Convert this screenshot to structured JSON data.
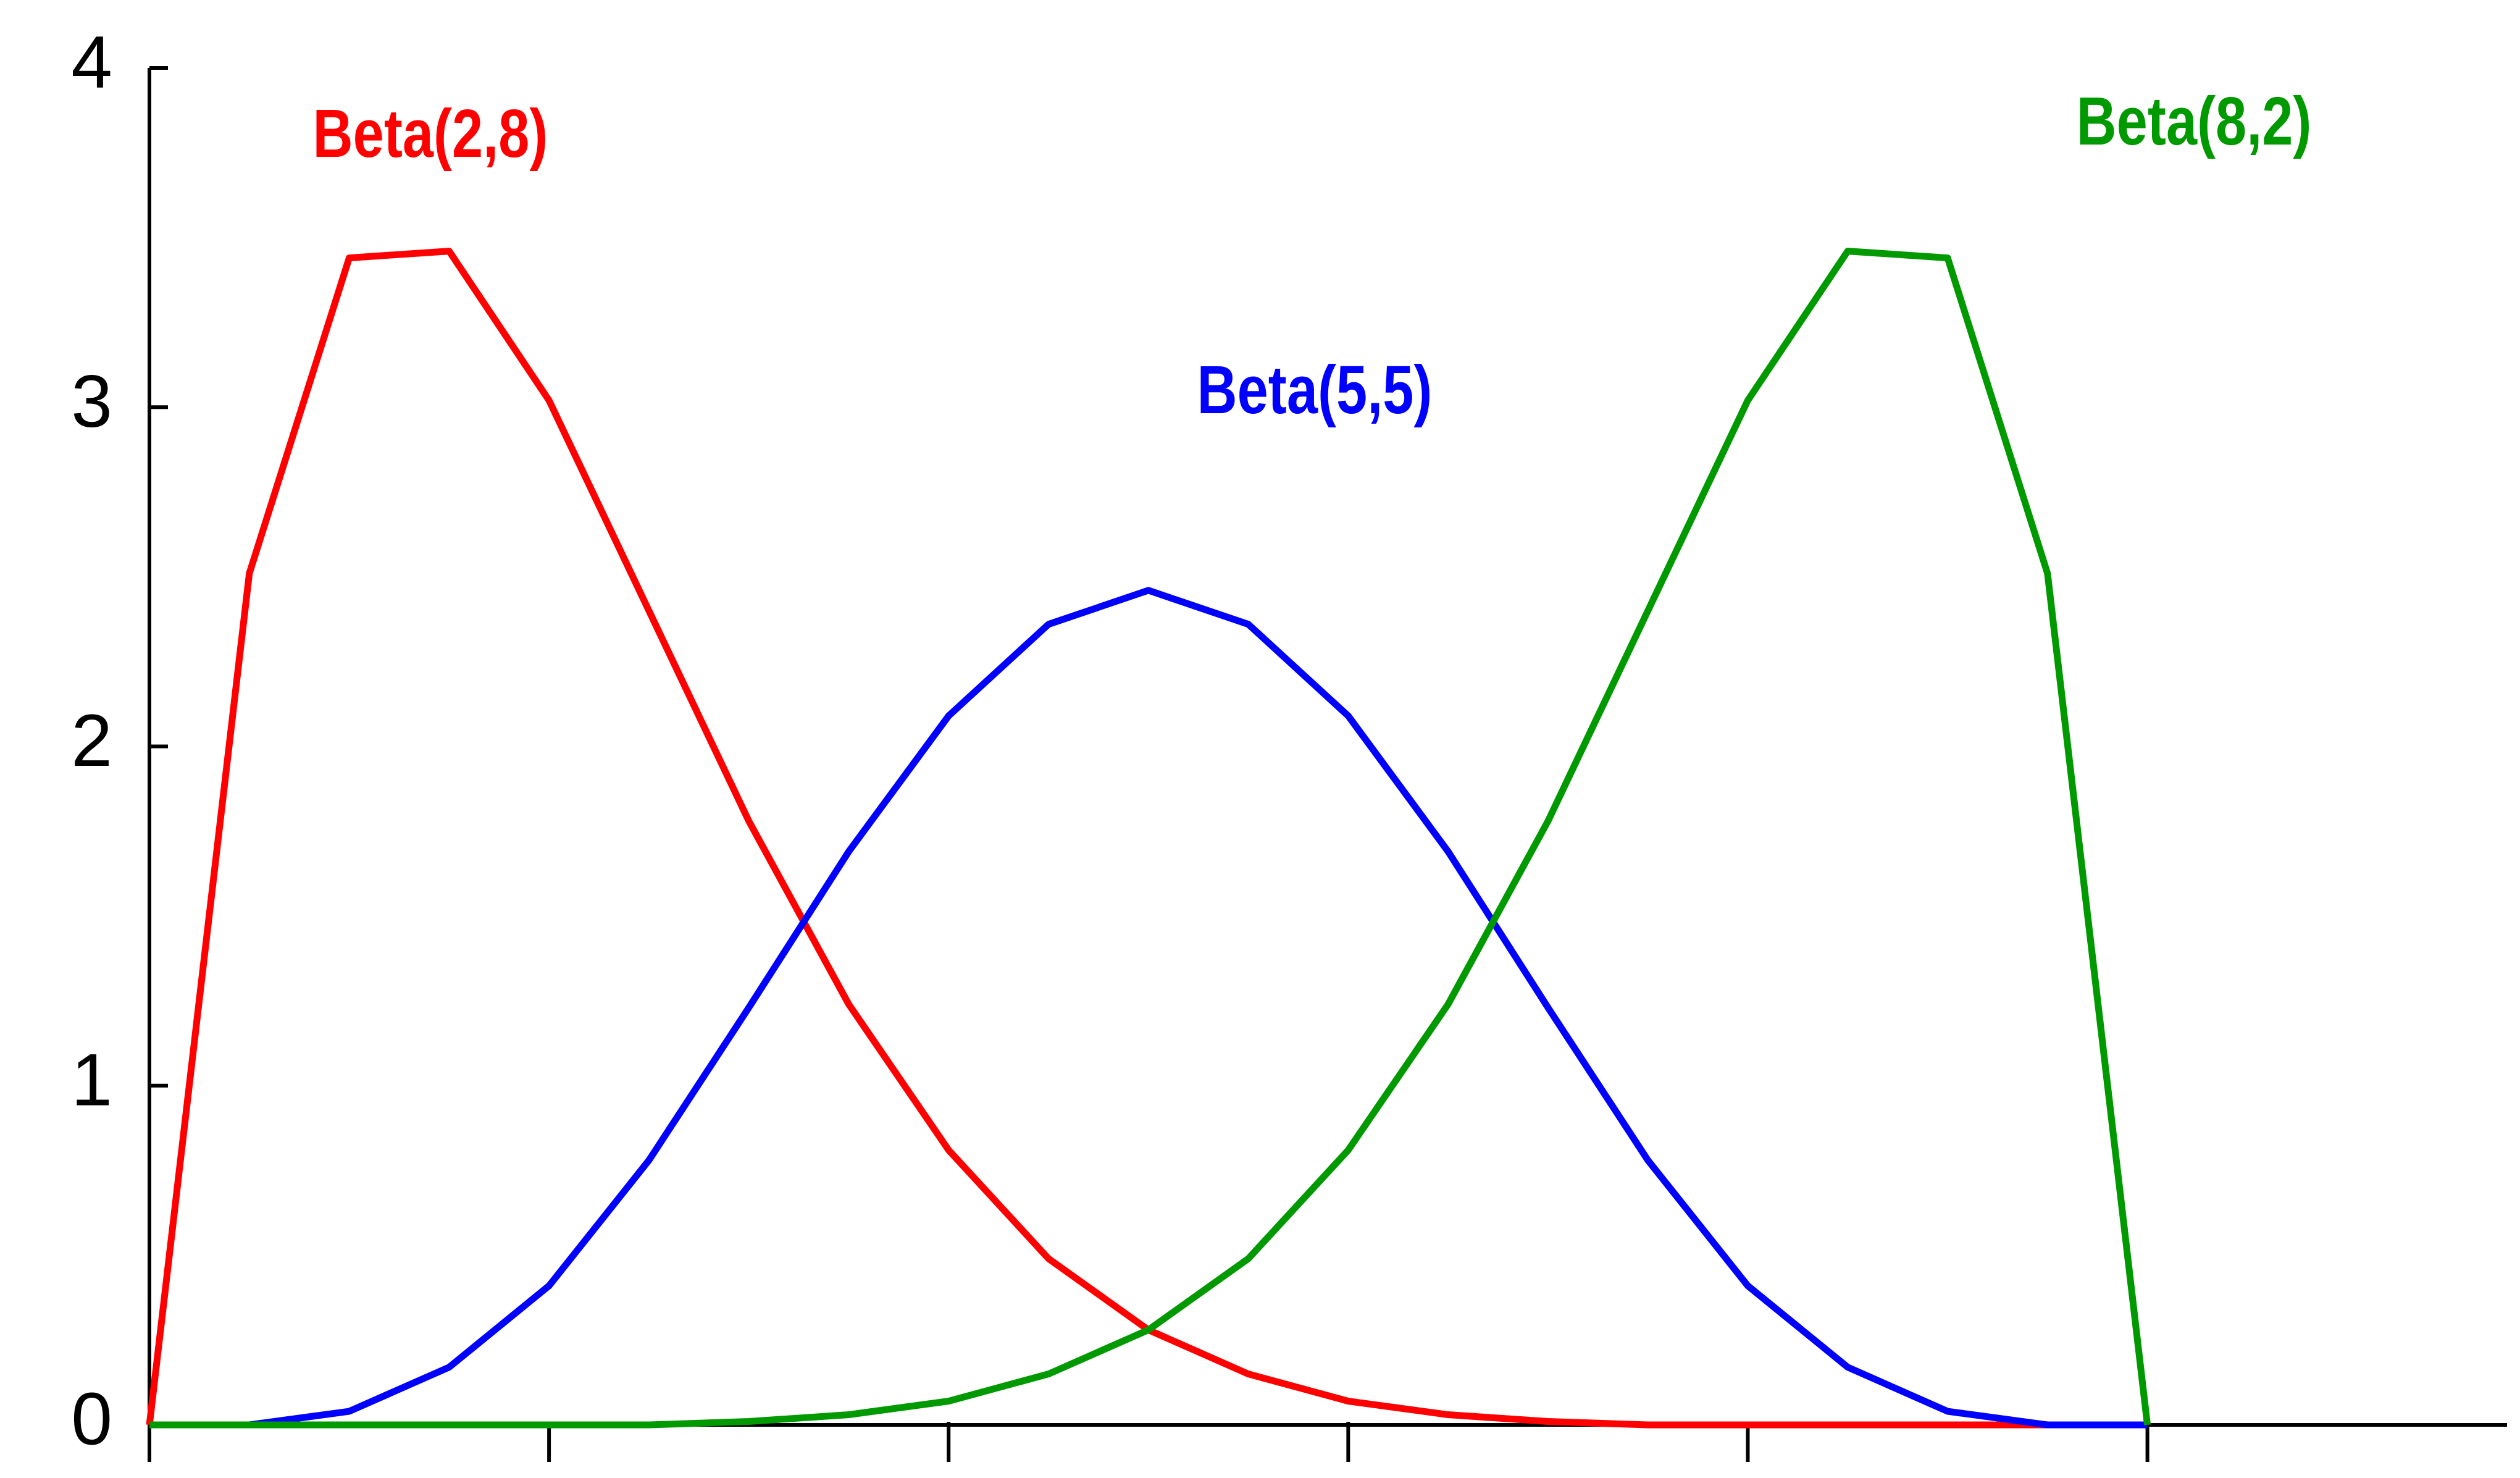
{
  "chart_data": {
    "type": "line",
    "x": [
      0,
      0.05,
      0.1,
      0.15,
      0.2,
      0.25,
      0.3,
      0.35,
      0.4,
      0.45,
      0.5,
      0.55,
      0.6,
      0.65,
      0.7,
      0.75,
      0.8,
      0.85,
      0.9,
      0.95,
      1
    ],
    "series": [
      {
        "name": "Beta(2,8)",
        "color": "#ff0000",
        "values": [
          0,
          2.51,
          3.44,
          3.46,
          3.02,
          2.4,
          1.78,
          1.24,
          0.81,
          0.49,
          0.28,
          0.15,
          0.07,
          0.03,
          0.01,
          0,
          0,
          0,
          0,
          0,
          0
        ]
      },
      {
        "name": "Beta(5,5)",
        "color": "#0000ff",
        "values": [
          0,
          0,
          0.04,
          0.17,
          0.41,
          0.78,
          1.23,
          1.69,
          2.09,
          2.36,
          2.46,
          2.36,
          2.09,
          1.69,
          1.23,
          0.78,
          0.41,
          0.17,
          0.04,
          0,
          0
        ]
      },
      {
        "name": "Beta(8,2)",
        "color": "#009900",
        "values": [
          0,
          0,
          0,
          0,
          0,
          0,
          0.01,
          0.03,
          0.07,
          0.15,
          0.28,
          0.49,
          0.81,
          1.24,
          1.78,
          2.4,
          3.02,
          3.46,
          3.44,
          2.51,
          0
        ]
      }
    ],
    "xlim": [
      0,
      1.18
    ],
    "xticks": [
      0,
      0.2,
      0.4,
      0.6,
      0.8,
      1
    ],
    "ylim": [
      0,
      4
    ],
    "yticks": [
      0,
      1,
      2,
      3,
      4
    ]
  }
}
